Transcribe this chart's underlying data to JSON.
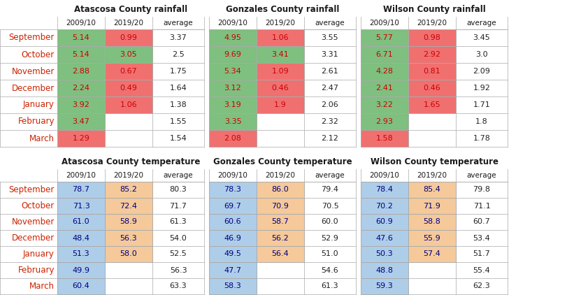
{
  "counties": [
    "Atascosa County",
    "Gonzales County",
    "Wilson County"
  ],
  "months": [
    "September",
    "October",
    "November",
    "December",
    "January",
    "February",
    "March"
  ],
  "col_headers": [
    "2009/10",
    "2019/20",
    "average"
  ],
  "rainfall": {
    "Atascosa County": {
      "2009/10": [
        5.14,
        5.14,
        2.88,
        2.24,
        3.92,
        3.47,
        1.29
      ],
      "2019/20": [
        0.99,
        3.05,
        0.67,
        0.49,
        1.06,
        null,
        null
      ],
      "average": [
        3.37,
        2.5,
        1.75,
        1.64,
        1.38,
        1.55,
        1.54
      ]
    },
    "Gonzales County": {
      "2009/10": [
        4.95,
        9.69,
        5.34,
        3.12,
        3.19,
        3.35,
        2.08
      ],
      "2019/20": [
        1.06,
        3.41,
        1.09,
        0.46,
        1.9,
        null,
        null
      ],
      "average": [
        3.55,
        3.31,
        2.61,
        2.47,
        2.06,
        2.32,
        2.12
      ]
    },
    "Wilson County": {
      "2009/10": [
        5.77,
        6.71,
        4.28,
        2.41,
        3.22,
        2.93,
        1.58
      ],
      "2019/20": [
        0.98,
        2.92,
        0.81,
        0.46,
        1.65,
        null,
        null
      ],
      "average": [
        3.45,
        3.0,
        2.09,
        1.92,
        1.71,
        1.8,
        1.78
      ]
    }
  },
  "temperature": {
    "Atascosa County": {
      "2009/10": [
        78.7,
        71.3,
        61.0,
        48.4,
        51.3,
        49.9,
        60.4
      ],
      "2019/20": [
        85.2,
        72.4,
        58.9,
        56.3,
        58.0,
        null,
        null
      ],
      "average": [
        80.3,
        71.7,
        61.3,
        54.0,
        52.5,
        56.3,
        63.3
      ]
    },
    "Gonzales County": {
      "2009/10": [
        78.3,
        69.7,
        60.6,
        46.9,
        49.5,
        47.7,
        58.3
      ],
      "2019/20": [
        86.0,
        70.9,
        58.7,
        56.2,
        56.4,
        null,
        null
      ],
      "average": [
        79.4,
        70.5,
        60.0,
        52.9,
        51.0,
        54.6,
        61.3
      ]
    },
    "Wilson County": {
      "2009/10": [
        78.4,
        70.2,
        60.9,
        47.6,
        50.3,
        48.8,
        59.3
      ],
      "2019/20": [
        85.4,
        71.9,
        58.8,
        55.9,
        57.4,
        null,
        null
      ],
      "average": [
        79.8,
        71.1,
        60.7,
        53.4,
        51.7,
        55.4,
        62.3
      ]
    }
  },
  "rain_green": "#7fbf7f",
  "rain_red": "#f07070",
  "temp_blue": "#aecde8",
  "temp_orange": "#f5c99a",
  "title_black": "#1a1a1a",
  "month_red": "#cc2200",
  "val_rain_red": "#cc0000",
  "val_temp_blue": "#000080",
  "avg_black": "#222222",
  "bg": "#ffffff",
  "line_color": "#aaaaaa"
}
